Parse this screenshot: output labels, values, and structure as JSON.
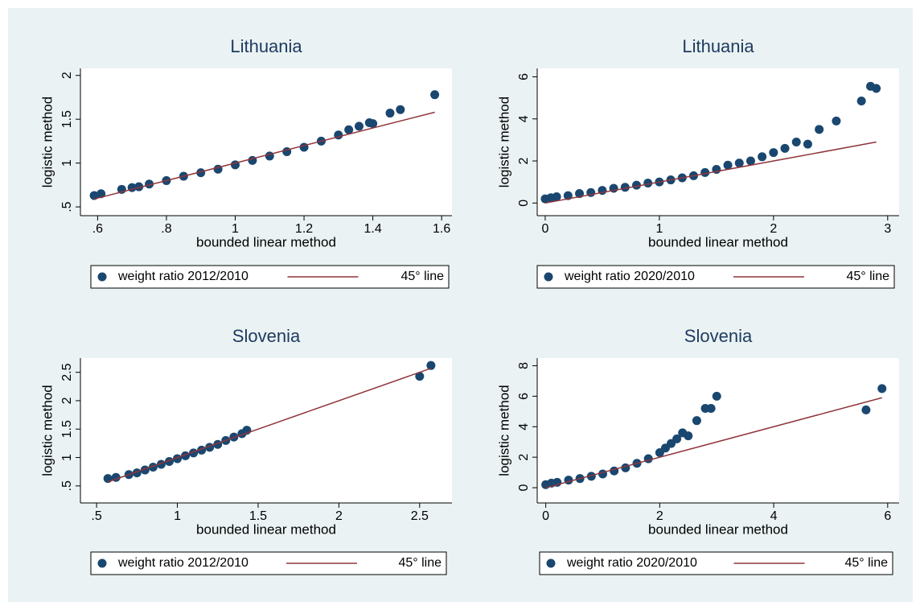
{
  "chart_data": [
    {
      "type": "scatter",
      "title": "Lithuania",
      "x_label": "bounded linear method",
      "y_label": "logistic method",
      "xlim": [
        0.55,
        1.63
      ],
      "ylim": [
        0.4,
        2.08
      ],
      "xticks": [
        {
          "value": 0.6,
          "label": ".6"
        },
        {
          "value": 0.8,
          "label": ".8"
        },
        1,
        1.2,
        1.4,
        1.6
      ],
      "yticks": [
        {
          "value": 0.5,
          "label": ".5"
        },
        1,
        1.5,
        2
      ],
      "series": [
        {
          "name": "weight ratio 2012/2010",
          "color": "#1a476f",
          "mode": "markers",
          "x": [
            0.59,
            0.61,
            0.67,
            0.7,
            0.72,
            0.75,
            0.8,
            0.85,
            0.9,
            0.95,
            1.0,
            1.05,
            1.1,
            1.15,
            1.2,
            1.25,
            1.3,
            1.33,
            1.36,
            1.39,
            1.4,
            1.45,
            1.48,
            1.58
          ],
          "values": [
            0.63,
            0.65,
            0.7,
            0.72,
            0.73,
            0.76,
            0.8,
            0.85,
            0.89,
            0.93,
            0.98,
            1.03,
            1.08,
            1.13,
            1.18,
            1.25,
            1.32,
            1.38,
            1.42,
            1.46,
            1.45,
            1.57,
            1.61,
            1.78
          ]
        },
        {
          "name": "45° line",
          "color": "#90353b",
          "mode": "lines",
          "x": [
            0.59,
            1.58
          ],
          "values": [
            0.59,
            1.58
          ]
        }
      ]
    },
    {
      "type": "scatter",
      "title": "Lithuania",
      "x_label": "bounded linear method",
      "y_label": "logistic method",
      "xlim": [
        -0.07,
        3.1
      ],
      "ylim": [
        -0.6,
        6.4
      ],
      "xticks": [
        0,
        1,
        2,
        3
      ],
      "yticks": [
        0,
        2,
        4,
        6
      ],
      "series": [
        {
          "name": "weight ratio 2020/2010",
          "color": "#1a476f",
          "mode": "markers",
          "x": [
            0,
            0.05,
            0.1,
            0.2,
            0.3,
            0.4,
            0.5,
            0.6,
            0.7,
            0.8,
            0.9,
            1.0,
            1.1,
            1.2,
            1.3,
            1.4,
            1.5,
            1.6,
            1.7,
            1.8,
            1.9,
            2.0,
            2.1,
            2.2,
            2.3,
            2.4,
            2.55,
            2.77,
            2.85,
            2.9
          ],
          "values": [
            0.2,
            0.25,
            0.3,
            0.35,
            0.45,
            0.5,
            0.6,
            0.7,
            0.75,
            0.85,
            0.95,
            1.0,
            1.1,
            1.2,
            1.3,
            1.45,
            1.6,
            1.8,
            1.9,
            2.0,
            2.2,
            2.4,
            2.6,
            2.9,
            2.8,
            3.5,
            3.9,
            4.85,
            5.55,
            5.45
          ]
        },
        {
          "name": "45° line",
          "color": "#90353b",
          "mode": "lines",
          "x": [
            0,
            2.9
          ],
          "values": [
            0,
            2.9
          ]
        }
      ]
    },
    {
      "type": "scatter",
      "title": "Slovenia",
      "x_label": "bounded linear method",
      "y_label": "logistic method",
      "xlim": [
        0.4,
        2.7
      ],
      "ylim": [
        0.2,
        2.75
      ],
      "xticks": [
        {
          "value": 0.5,
          "label": ".5"
        },
        1,
        1.5,
        2,
        2.5
      ],
      "yticks": [
        {
          "value": 0.5,
          "label": ".5"
        },
        1,
        1.5,
        2,
        2.5
      ],
      "series": [
        {
          "name": "weight ratio 2012/2010",
          "color": "#1a476f",
          "mode": "markers",
          "x": [
            0.57,
            0.62,
            0.7,
            0.75,
            0.8,
            0.85,
            0.9,
            0.95,
            1.0,
            1.05,
            1.1,
            1.15,
            1.2,
            1.25,
            1.3,
            1.35,
            1.4,
            1.43,
            2.5,
            2.57
          ],
          "values": [
            0.63,
            0.65,
            0.7,
            0.73,
            0.78,
            0.83,
            0.88,
            0.93,
            0.98,
            1.03,
            1.08,
            1.13,
            1.18,
            1.23,
            1.3,
            1.36,
            1.42,
            1.48,
            2.43,
            2.62
          ]
        },
        {
          "name": "45° line",
          "color": "#90353b",
          "mode": "lines",
          "x": [
            0.57,
            2.57
          ],
          "values": [
            0.57,
            2.57
          ]
        }
      ]
    },
    {
      "type": "scatter",
      "title": "Slovenia",
      "x_label": "bounded linear method",
      "y_label": "logistic method",
      "xlim": [
        -0.15,
        6.2
      ],
      "ylim": [
        -1,
        8.5
      ],
      "xticks": [
        0,
        2,
        4,
        6
      ],
      "yticks": [
        0,
        2,
        4,
        6,
        8
      ],
      "series": [
        {
          "name": "weight ratio 2020/2010",
          "color": "#1a476f",
          "mode": "markers",
          "x": [
            0,
            0.1,
            0.2,
            0.4,
            0.6,
            0.8,
            1.0,
            1.2,
            1.4,
            1.6,
            1.8,
            2.0,
            2.1,
            2.2,
            2.3,
            2.4,
            2.5,
            2.65,
            2.8,
            2.9,
            3.0,
            5.62,
            5.9
          ],
          "values": [
            0.2,
            0.3,
            0.35,
            0.5,
            0.6,
            0.75,
            0.9,
            1.1,
            1.3,
            1.6,
            1.9,
            2.3,
            2.6,
            2.9,
            3.2,
            3.6,
            3.4,
            4.4,
            5.2,
            5.2,
            6.0,
            5.1,
            6.5
          ]
        },
        {
          "name": "45° line",
          "color": "#90353b",
          "mode": "lines",
          "x": [
            0,
            5.9
          ],
          "values": [
            0,
            5.9
          ]
        }
      ]
    }
  ]
}
